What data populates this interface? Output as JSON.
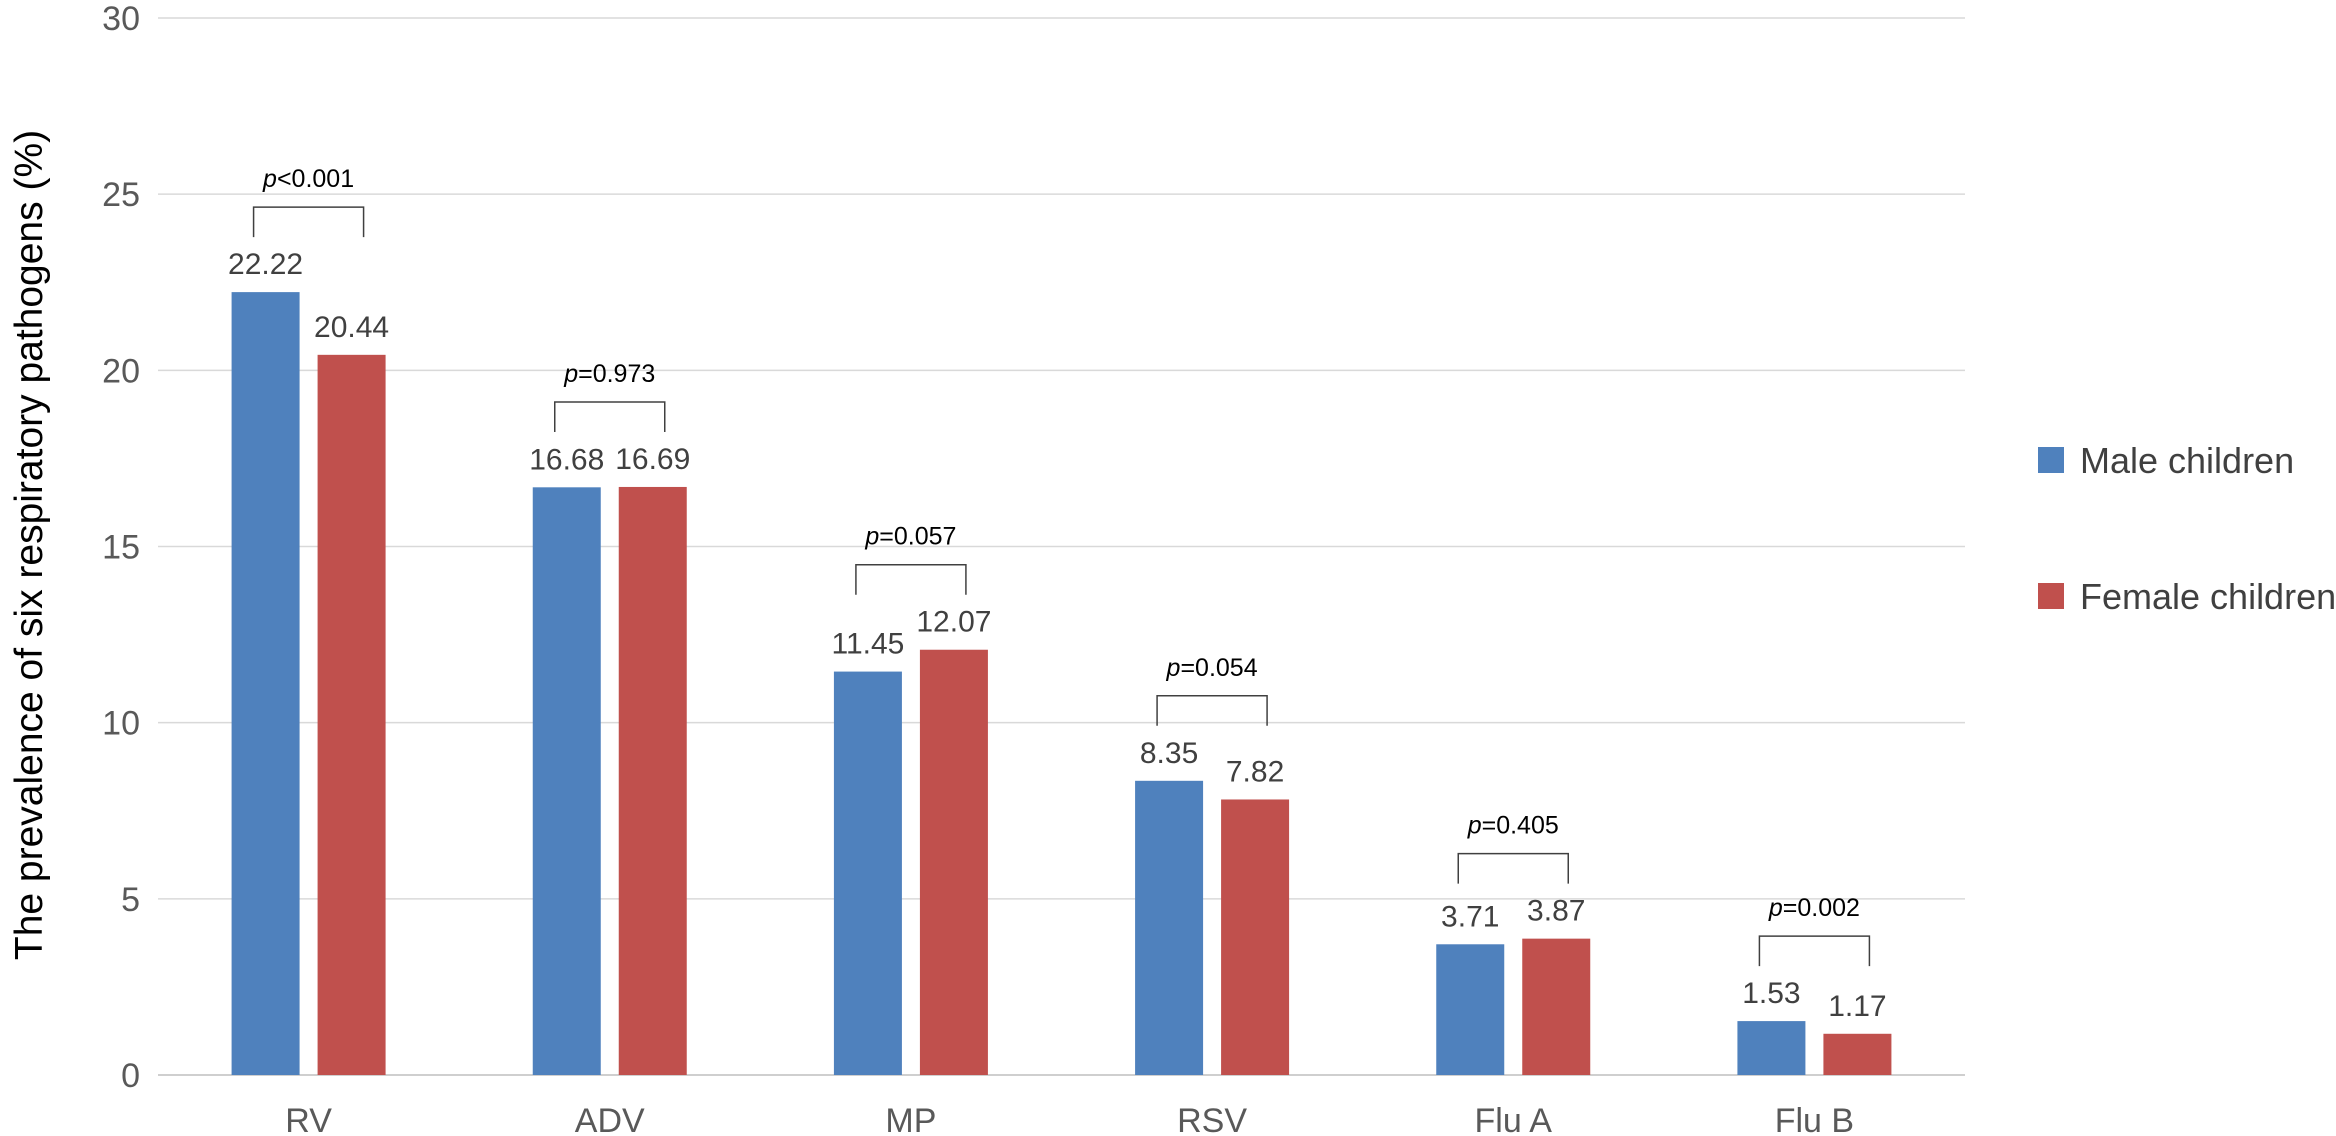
{
  "chart_data": {
    "type": "bar",
    "title": "",
    "xlabel": "",
    "ylabel": "The prevalence of six respiratory pathogens (%)",
    "ylim": [
      0,
      30
    ],
    "yticks": [
      0,
      5,
      10,
      15,
      20,
      25,
      30
    ],
    "grid": true,
    "legend_position": "right",
    "categories": [
      "RV",
      "ADV",
      "MP",
      "RSV",
      "Flu A",
      "Flu B"
    ],
    "series": [
      {
        "name": "Male children",
        "color": "#4F81BD",
        "values": [
          22.22,
          16.68,
          11.45,
          8.35,
          3.71,
          1.53
        ]
      },
      {
        "name": "Female children",
        "color": "#C0504D",
        "values": [
          20.44,
          16.69,
          12.07,
          7.82,
          3.87,
          1.17
        ]
      }
    ],
    "annotations": [
      {
        "category": "RV",
        "italic": "p",
        "text": "<0.001"
      },
      {
        "category": "ADV",
        "italic": "p",
        "text": "=0.973"
      },
      {
        "category": "MP",
        "italic": "p",
        "text": "=0.057"
      },
      {
        "category": "RSV",
        "italic": "p",
        "text": "=0.054"
      },
      {
        "category": "Flu A",
        "italic": "p",
        "text": "=0.405"
      },
      {
        "category": "Flu B",
        "italic": "p",
        "text": "=0.002"
      }
    ]
  }
}
